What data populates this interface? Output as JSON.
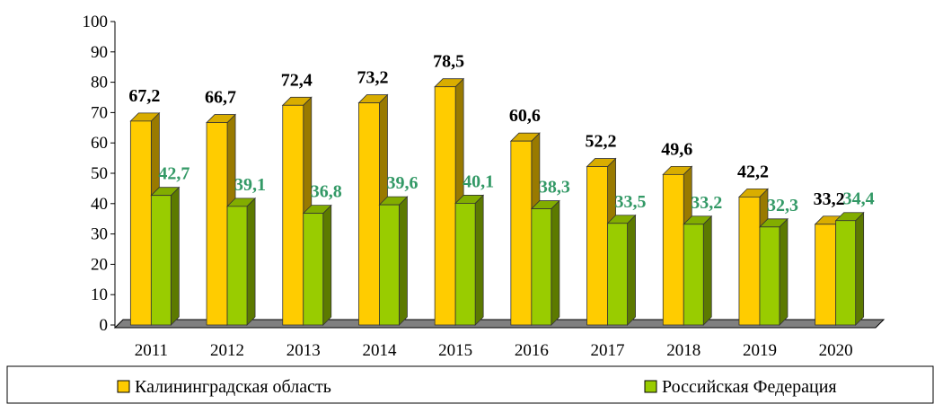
{
  "chart_data": {
    "type": "bar",
    "categories": [
      "2011",
      "2012",
      "2013",
      "2014",
      "2015",
      "2016",
      "2017",
      "2018",
      "2019",
      "2020"
    ],
    "series": [
      {
        "name": "Калининградская область",
        "color": "#ffcc00",
        "values": [
          67.2,
          66.7,
          72.4,
          73.2,
          78.5,
          60.6,
          52.2,
          49.6,
          42.2,
          33.2
        ],
        "value_labels": [
          "67,2",
          "66,7",
          "72,4",
          "73,2",
          "78,5",
          "60,6",
          "52,2",
          "49,6",
          "42,2",
          "33,2"
        ],
        "label_color": "#000000"
      },
      {
        "name": "Российская Федерация",
        "color": "#99cc00",
        "values": [
          42.7,
          39.1,
          36.8,
          39.6,
          40.1,
          38.3,
          33.5,
          33.2,
          32.3,
          34.4
        ],
        "value_labels": [
          "42,7",
          "39,1",
          "36,8",
          "39,6",
          "40,1",
          "38,3",
          "33,5",
          "33,2",
          "32,3",
          "34,4"
        ],
        "label_color": "#339966"
      }
    ],
    "ylim": [
      0,
      100
    ],
    "yticks": [
      0,
      10,
      20,
      30,
      40,
      50,
      60,
      70,
      80,
      90,
      100
    ],
    "legend": "bottom"
  }
}
